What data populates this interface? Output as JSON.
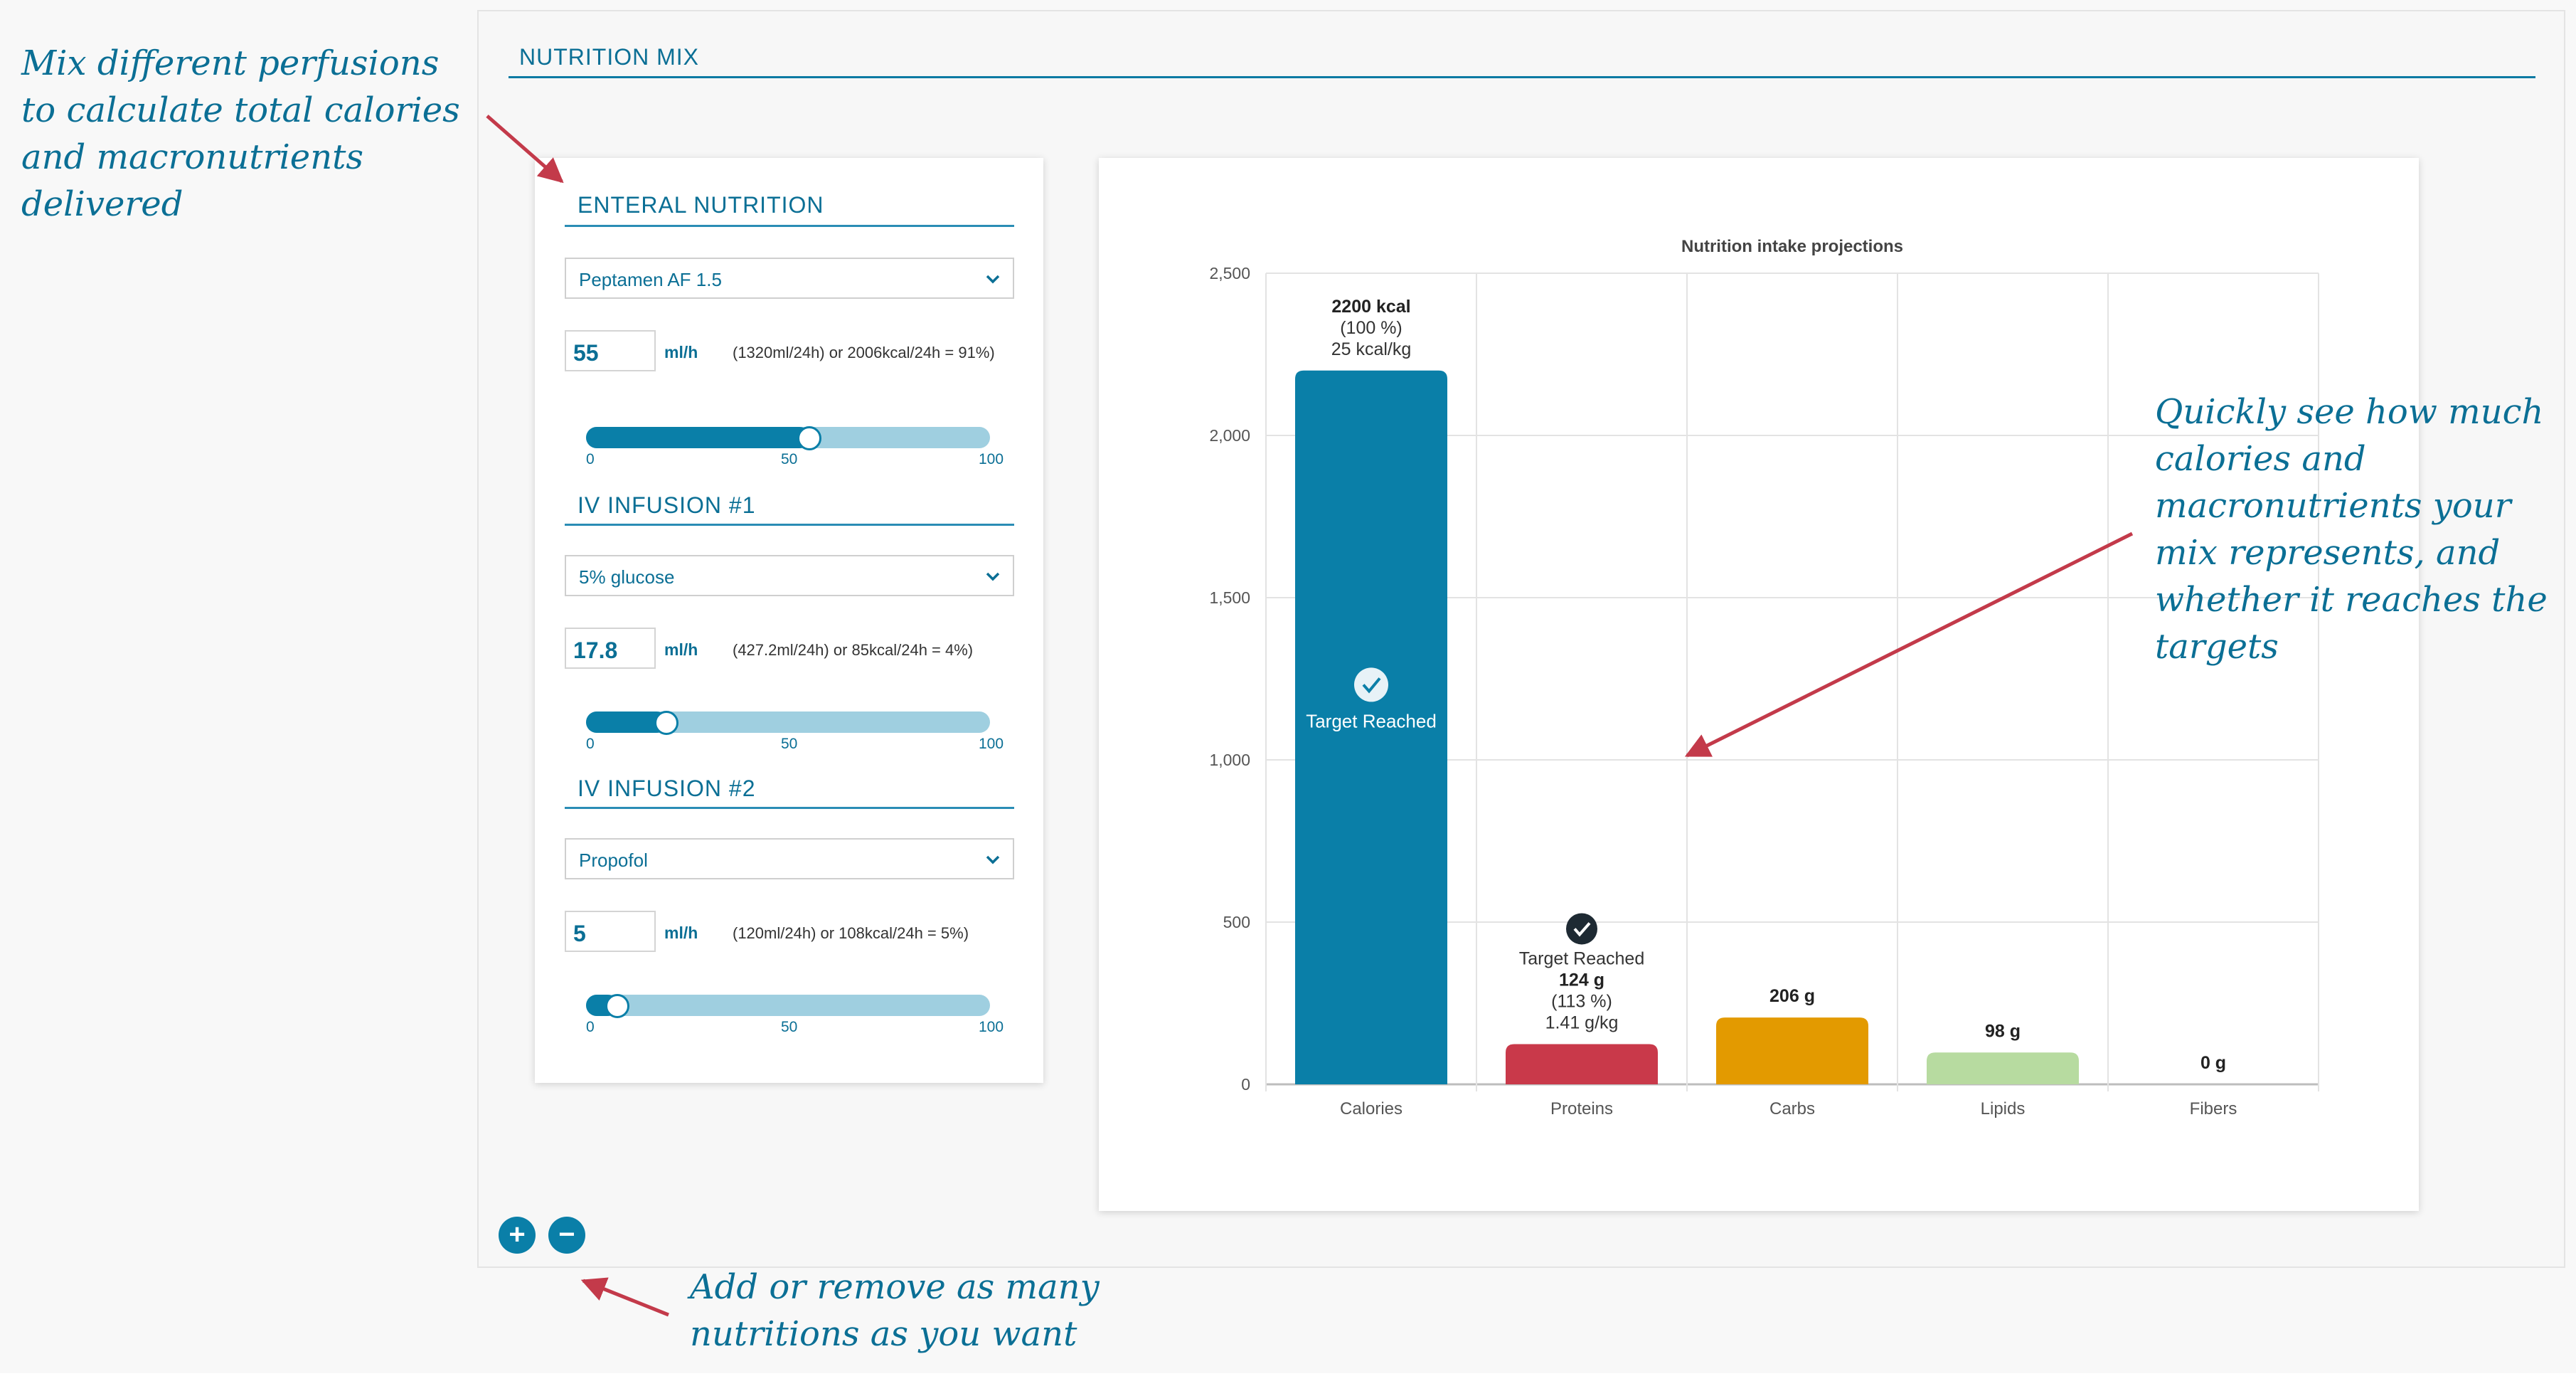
{
  "section_title": "NUTRITION MIX",
  "annotations": {
    "top_left": "Mix different perfusions to calculate total calories and macronutrients delivered",
    "right": "Quickly see how much calories and macronutrients your mix represents, and whether it reaches the targets",
    "bottom": "Add or remove as many nutritions as you want"
  },
  "blocks": [
    {
      "title": "ENTERAL NUTRITION",
      "product": "Peptamen AF 1.5",
      "rate": "55",
      "unit": "ml/h",
      "detail": "(1320ml/24h) or 2006kcal/24h = 91%)",
      "slider_value": 55,
      "ticks": [
        "0",
        "50",
        "100"
      ]
    },
    {
      "title": "IV INFUSION #1",
      "product": "5% glucose",
      "rate": "17.8",
      "unit": "ml/h",
      "detail": "(427.2ml/24h) or 85kcal/24h = 4%)",
      "slider_value": 17.8,
      "ticks": [
        "0",
        "50",
        "100"
      ]
    },
    {
      "title": "IV INFUSION #2",
      "product": "Propofol",
      "rate": "5",
      "unit": "ml/h",
      "detail": "(120ml/24h) or 108kcal/24h = 5%)",
      "slider_value": 5,
      "ticks": [
        "0",
        "50",
        "100"
      ]
    }
  ],
  "buttons": {
    "add": "+",
    "remove": "−"
  },
  "icons": {
    "dropdown": "chevron-down-icon",
    "target": "check-circle-icon",
    "add": "plus-icon",
    "remove": "minus-icon"
  },
  "colors": {
    "accent": "#0b6f95",
    "calories": "#0a7fa8",
    "proteins": "#c9394a",
    "carbs": "#e39a00",
    "lipids": "#b7dba0",
    "fibers": "#8e8e8e"
  },
  "chart_data": {
    "type": "bar",
    "title": "Nutrition intake projections",
    "categories": [
      "Calories",
      "Proteins",
      "Carbs",
      "Lipids",
      "Fibers"
    ],
    "values": [
      2200,
      124,
      206,
      98,
      0
    ],
    "ylim": [
      0,
      2500
    ],
    "yticks": [
      "0",
      "500",
      "1,000",
      "1,500",
      "2,000",
      "2,500"
    ],
    "grid": true,
    "bar_labels": [
      {
        "target": "",
        "main": "2200 kcal",
        "pct": "(100 %)",
        "per_kg": "25 kcal/kg"
      },
      {
        "target": "Target Reached",
        "main": "124 g",
        "pct": "(113 %)",
        "per_kg": "1.41 g/kg"
      },
      {
        "target": "",
        "main": "206 g",
        "pct": "",
        "per_kg": ""
      },
      {
        "target": "",
        "main": "98 g",
        "pct": "",
        "per_kg": ""
      },
      {
        "target": "",
        "main": "0 g",
        "pct": "",
        "per_kg": ""
      }
    ],
    "inside_labels": [
      "Target Reached",
      "",
      "",
      "",
      ""
    ]
  }
}
